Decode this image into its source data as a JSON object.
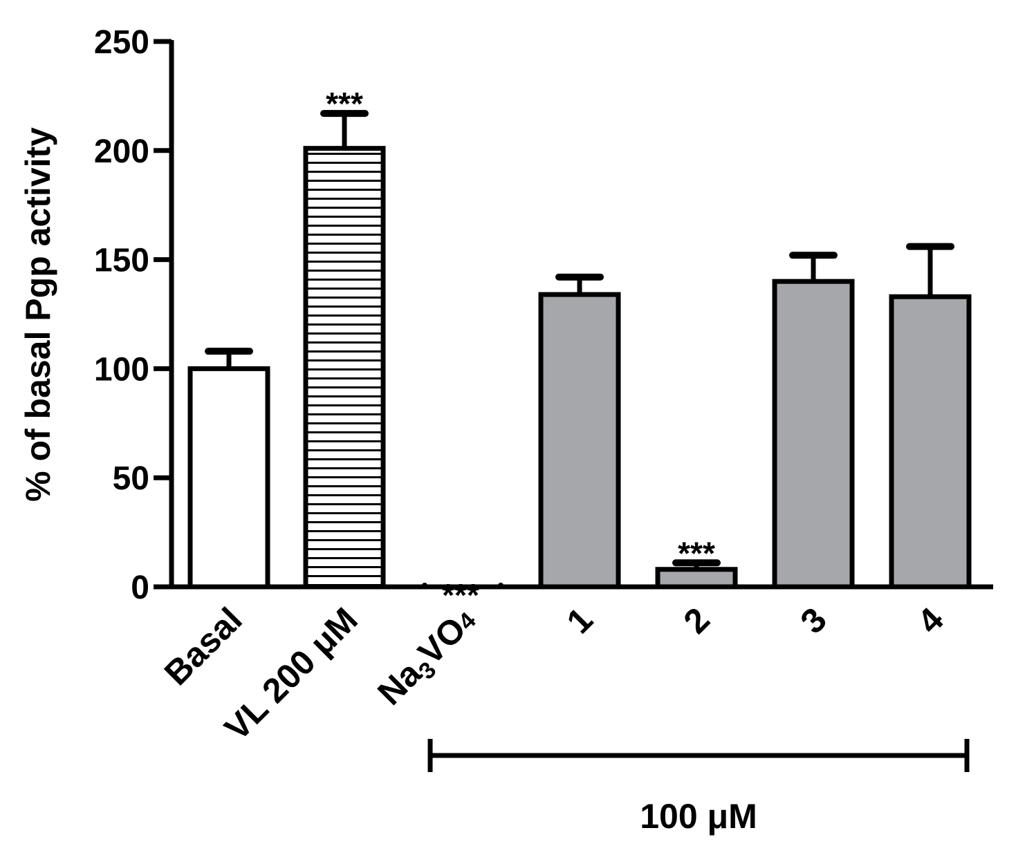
{
  "chart_data": {
    "type": "bar",
    "title": "",
    "xlabel": "",
    "ylabel": "% of basal Pgp activity",
    "ylim": [
      0,
      250
    ],
    "yticks": [
      0,
      50,
      100,
      150,
      200,
      250
    ],
    "grid": false,
    "legend": "none",
    "categories": [
      {
        "label": "Basal",
        "value": 100,
        "error": 8,
        "fill": "white",
        "annotation": ""
      },
      {
        "label": "VL 200 μM",
        "value": 201,
        "error": 16,
        "fill": "horizontal-stripes",
        "annotation": "***"
      },
      {
        "label": "Na3VO4",
        "label_main": "Na",
        "label_sub": "3",
        "label_end": "VO",
        "label_sub2": "4",
        "value": 0,
        "error": 0,
        "fill": "none",
        "annotation": "***"
      },
      {
        "label": "1",
        "value": 134,
        "error": 8,
        "fill": "gray",
        "annotation": ""
      },
      {
        "label": "2",
        "value": 8,
        "error": 3,
        "fill": "gray",
        "annotation": "***"
      },
      {
        "label": "3",
        "value": 140,
        "error": 12,
        "fill": "gray",
        "annotation": ""
      },
      {
        "label": "4",
        "value": 133,
        "error": 23,
        "fill": "gray",
        "annotation": ""
      }
    ],
    "group_bracket": {
      "label": "100 μM",
      "from_category": 2,
      "to_category": 6
    },
    "colors": {
      "gray": "#a6a7aa",
      "stroke": "#000000",
      "white": "#ffffff"
    }
  }
}
